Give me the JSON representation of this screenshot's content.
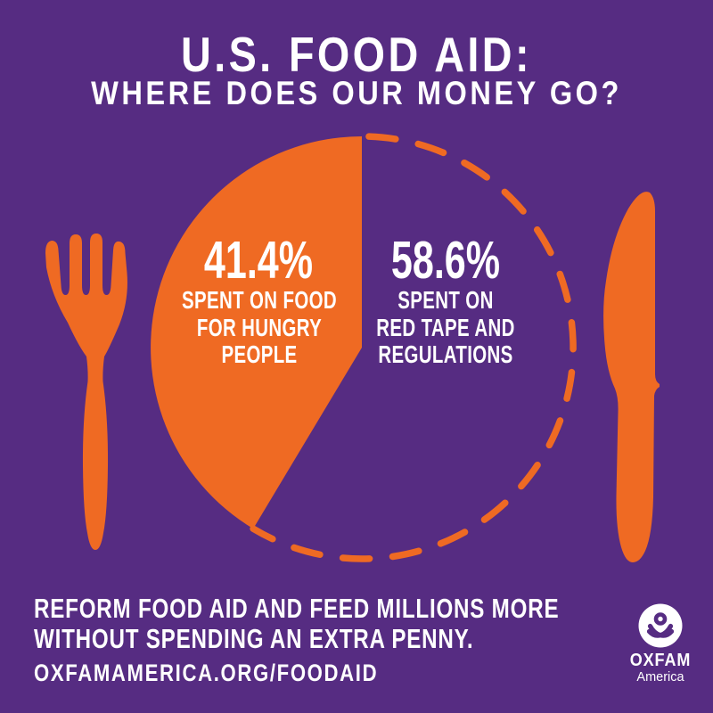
{
  "title": {
    "line1": "U.S. FOOD AID:",
    "line2": "WHERE DOES OUR MONEY GO?"
  },
  "chart_data": {
    "type": "pie",
    "title": "U.S. FOOD AID: WHERE DOES OUR MONEY GO?",
    "categories": [
      "SPENT ON FOOD FOR HUNGRY PEOPLE",
      "SPENT ON RED TAPE AND REGULATIONS"
    ],
    "values": [
      41.4,
      58.6
    ],
    "unit": "%",
    "slice_styles": [
      "solid-orange-fill",
      "dashed-orange-outline-on-purple"
    ],
    "start_position": "12-o-clock",
    "first_slice_direction": "counterclockwise",
    "legend_position": "labels-on-chart",
    "colors": {
      "slice_fill": "#EF6A23",
      "arc_stroke": "#EF6A23",
      "background": "#562C82",
      "text": "#FFFFFF"
    }
  },
  "plate": {
    "left_label": {
      "pct": "41.4%",
      "caption": "SPENT ON FOOD\nFOR HUNGRY\nPEOPLE"
    },
    "right_label": {
      "pct": "58.6%",
      "caption": "SPENT ON\nRED TAPE AND\nREGULATIONS"
    }
  },
  "footer": {
    "message": "REFORM FOOD AID AND FEED MILLIONS MORE\nWITHOUT SPENDING AN EXTRA PENNY.",
    "url": "OXFAMAMERICA.ORG/FOODAID"
  },
  "logo": {
    "name": "OXFAM",
    "region": "America"
  },
  "icons": [
    "fork-icon",
    "knife-icon",
    "oxfam-logo-mark"
  ],
  "colors": {
    "background_purple": "#562C82",
    "accent_orange": "#EF6A23",
    "text_white": "#FFFFFF"
  }
}
